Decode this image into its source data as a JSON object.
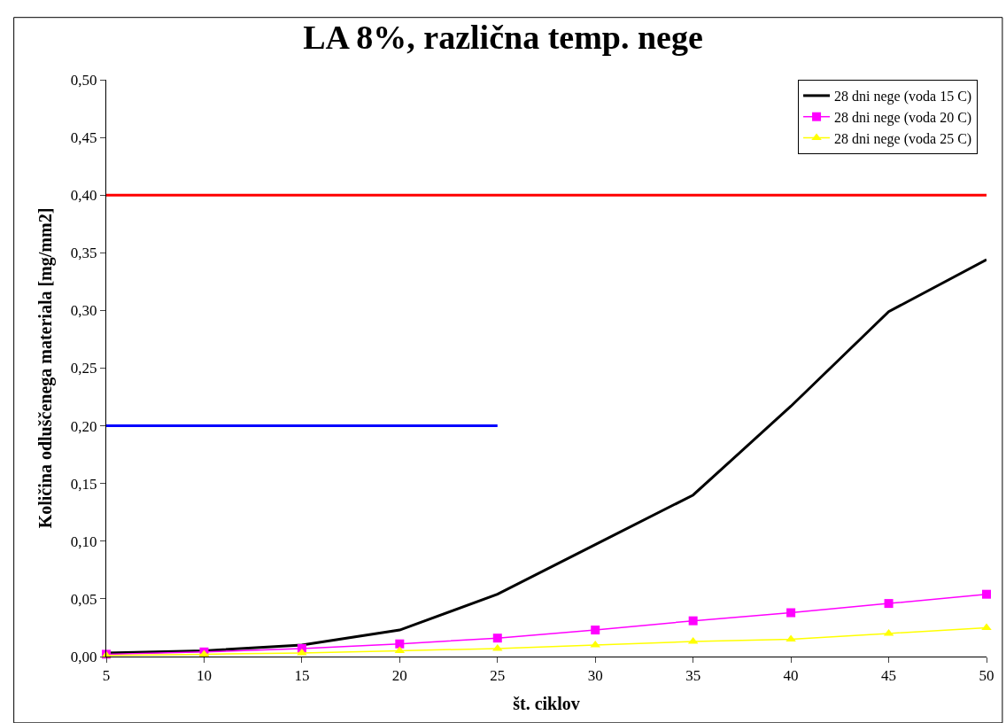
{
  "chart_data": {
    "type": "line",
    "title": "LA 8%, različna temp. nege",
    "xlabel": "št. ciklov",
    "ylabel": "Količina odluščenega materiala [mg/mm2]",
    "x": [
      5,
      10,
      15,
      20,
      25,
      30,
      35,
      40,
      45,
      50
    ],
    "series": [
      {
        "name": "28 dni nege (voda 15 C)",
        "color": "#000000",
        "marker": "none",
        "values": [
          0.003,
          0.005,
          0.01,
          0.023,
          0.054,
          0.097,
          0.14,
          0.217,
          0.299,
          0.344
        ]
      },
      {
        "name": "28 dni nege (voda 20 C)",
        "color": "#ff00ff",
        "marker": "square",
        "values": [
          0.002,
          0.004,
          0.007,
          0.011,
          0.016,
          0.023,
          0.031,
          0.038,
          0.046,
          0.054
        ]
      },
      {
        "name": "28 dni nege (voda 25 C)",
        "color": "#ffff00",
        "marker": "triangle",
        "values": [
          0.001,
          0.002,
          0.003,
          0.005,
          0.007,
          0.01,
          0.013,
          0.015,
          0.02,
          0.025
        ]
      },
      {
        "color": "#ff0000",
        "marker": "none",
        "values": [
          0.4,
          0.4,
          0.4,
          0.4,
          0.4,
          0.4,
          0.4,
          0.4,
          0.4,
          0.4
        ]
      },
      {
        "color": "#0000ff",
        "marker": "none",
        "values": [
          0.2,
          0.2,
          0.2,
          0.2,
          0.2,
          null,
          null,
          null,
          null,
          null
        ]
      }
    ],
    "xlim": [
      5,
      50
    ],
    "xticks": [
      5,
      10,
      15,
      20,
      25,
      30,
      35,
      40,
      45,
      50
    ],
    "ylim": [
      0,
      0.5
    ],
    "yticks": [
      {
        "value": 0,
        "label": "0,00"
      },
      {
        "value": 0.05,
        "label": "0,05"
      },
      {
        "value": 0.1,
        "label": "0,10"
      },
      {
        "value": 0.15,
        "label": "0,15"
      },
      {
        "value": 0.2,
        "label": "0,20"
      },
      {
        "value": 0.25,
        "label": "0,25"
      },
      {
        "value": 0.3,
        "label": "0,30"
      },
      {
        "value": 0.35,
        "label": "0,35"
      },
      {
        "value": 0.4,
        "label": "0,40"
      },
      {
        "value": 0.45,
        "label": "0,45"
      },
      {
        "value": 0.5,
        "label": "0,50"
      }
    ],
    "grid": false,
    "legend": "top right"
  }
}
